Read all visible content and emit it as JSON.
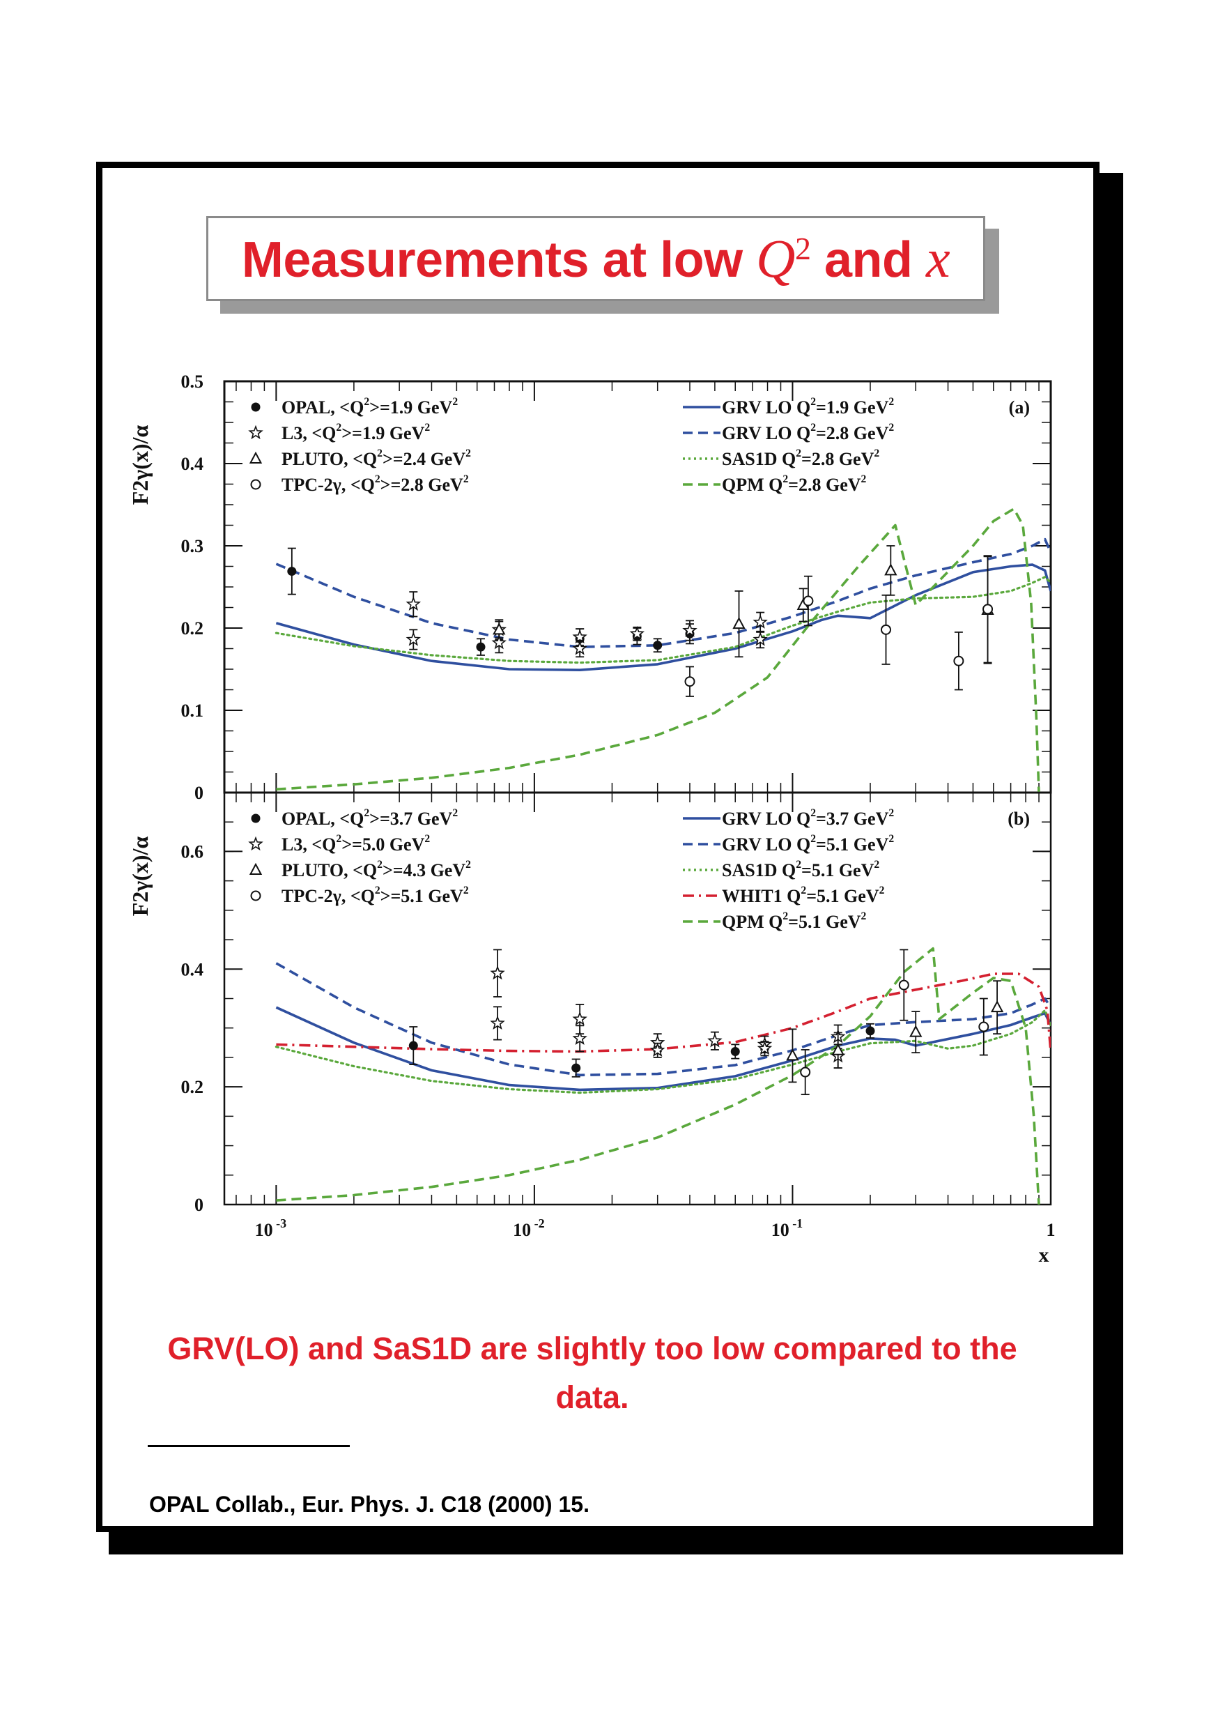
{
  "title": {
    "prefix": "Measurements at low ",
    "q": "Q",
    "exp": "2",
    "middle": " and ",
    "x": "x"
  },
  "conclusion": "GRV(LO) and SaS1D are slightly too low compared to the data.",
  "reference": "OPAL Collab., Eur. Phys. J. C18 (2000) 15.",
  "colors": {
    "red": "#e0202a",
    "blue": "#2f4f9f",
    "green": "#5aa83c",
    "whit": "#d42030"
  },
  "x_axis": {
    "label": "x",
    "scale": "log",
    "range": [
      0.00063,
      1.0
    ],
    "ticks": [
      0.001,
      0.01,
      0.1,
      1
    ],
    "tick_labels": [
      "10",
      "10",
      "10",
      "1"
    ],
    "tick_exponents": [
      "-3",
      "-2",
      "-1",
      ""
    ]
  },
  "chart_data": [
    {
      "type": "line",
      "panel_label": "(a)",
      "ylabel": "F2γ(x)/α",
      "ylim": [
        0,
        0.5
      ],
      "y_ticks": [
        0,
        0.1,
        0.2,
        0.3,
        0.4,
        0.5
      ],
      "y_tick_labels": [
        "0",
        "0.1",
        "0.2",
        "0.3",
        "0.4",
        "0.5"
      ],
      "legend_left": [
        {
          "text": "OPAL, <Q",
          "sup": "2",
          "rest": ">=1.9 GeV",
          "sup2": "2",
          "marker": "dot"
        },
        {
          "text": "L3, <Q",
          "sup": "2",
          "rest": ">=1.9 GeV",
          "sup2": "2",
          "marker": "star"
        },
        {
          "text": "PLUTO, <Q",
          "sup": "2",
          "rest": ">=2.4 GeV",
          "sup2": "2",
          "marker": "triangle"
        },
        {
          "text": "TPC-2γ, <Q",
          "sup": "2",
          "rest": ">=2.8 GeV",
          "sup2": "2",
          "marker": "circle"
        }
      ],
      "legend_right": [
        {
          "text": "GRV LO Q",
          "sup": "2",
          "rest": "=1.9 GeV",
          "sup2": "2",
          "style": "solid",
          "color": "#2f4f9f"
        },
        {
          "text": "GRV LO Q",
          "sup": "2",
          "rest": "=2.8 GeV",
          "sup2": "2",
          "style": "dash",
          "color": "#2f4f9f"
        },
        {
          "text": "SAS1D Q",
          "sup": "2",
          "rest": "=2.8 GeV",
          "sup2": "2",
          "style": "dot",
          "color": "#5aa83c"
        },
        {
          "text": "QPM Q",
          "sup": "2",
          "rest": "=2.8 GeV",
          "sup2": "2",
          "style": "dash",
          "color": "#5aa83c"
        }
      ],
      "curves": [
        {
          "name": "GRV LO Q2=1.9 GeV2",
          "style": "solid",
          "color": "#2f4f9f",
          "x": [
            0.001,
            0.002,
            0.004,
            0.008,
            0.015,
            0.03,
            0.06,
            0.1,
            0.13,
            0.15,
            0.2,
            0.3,
            0.5,
            0.7,
            0.85,
            0.95,
            1.0
          ],
          "y": [
            0.206,
            0.18,
            0.16,
            0.15,
            0.149,
            0.156,
            0.175,
            0.196,
            0.21,
            0.215,
            0.212,
            0.24,
            0.268,
            0.275,
            0.277,
            0.27,
            0.245
          ]
        },
        {
          "name": "GRV LO Q2=2.8 GeV2",
          "style": "dash",
          "color": "#2f4f9f",
          "x": [
            0.001,
            0.002,
            0.004,
            0.008,
            0.015,
            0.03,
            0.06,
            0.1,
            0.15,
            0.2,
            0.3,
            0.5,
            0.7,
            0.85,
            0.95,
            1.0
          ],
          "y": [
            0.278,
            0.238,
            0.206,
            0.186,
            0.177,
            0.179,
            0.194,
            0.214,
            0.233,
            0.248,
            0.264,
            0.28,
            0.29,
            0.3,
            0.308,
            0.292
          ]
        },
        {
          "name": "SAS1D Q2=2.8 GeV2",
          "style": "dot",
          "color": "#5aa83c",
          "x": [
            0.001,
            0.002,
            0.004,
            0.008,
            0.015,
            0.03,
            0.06,
            0.1,
            0.15,
            0.2,
            0.3,
            0.5,
            0.7,
            0.85,
            0.95,
            1.0
          ],
          "y": [
            0.194,
            0.178,
            0.167,
            0.16,
            0.158,
            0.161,
            0.177,
            0.203,
            0.22,
            0.231,
            0.236,
            0.238,
            0.245,
            0.255,
            0.262,
            0.255
          ]
        },
        {
          "name": "QPM Q2=2.8 GeV2",
          "style": "dash",
          "color": "#5aa83c",
          "x": [
            0.001,
            0.002,
            0.004,
            0.008,
            0.015,
            0.03,
            0.05,
            0.08,
            0.12,
            0.18,
            0.25,
            0.3,
            0.5,
            0.6,
            0.72,
            0.78,
            0.84,
            0.88,
            0.9
          ],
          "y": [
            0.004,
            0.01,
            0.018,
            0.03,
            0.046,
            0.07,
            0.097,
            0.14,
            0.21,
            0.275,
            0.325,
            0.228,
            0.3,
            0.33,
            0.345,
            0.325,
            0.23,
            0.09,
            0.0
          ]
        }
      ],
      "points": [
        {
          "marker": "dot",
          "x": [
            0.00115,
            0.0062,
            0.015,
            0.025,
            0.03,
            0.04
          ],
          "y": [
            0.269,
            0.177,
            0.187,
            0.19,
            0.179,
            0.193
          ],
          "err": [
            0.028,
            0.01,
            0.012,
            0.01,
            0.008,
            0.012
          ]
        },
        {
          "marker": "star",
          "x": [
            0.0034,
            0.0034,
            0.0073,
            0.0073,
            0.015,
            0.015,
            0.025,
            0.04,
            0.075,
            0.075
          ],
          "y": [
            0.229,
            0.186,
            0.198,
            0.182,
            0.189,
            0.175,
            0.193,
            0.197,
            0.207,
            0.186
          ],
          "err": [
            0.015,
            0.012,
            0.012,
            0.012,
            0.01,
            0.01,
            0.008,
            0.012,
            0.012,
            0.01
          ]
        },
        {
          "marker": "triangle",
          "x": [
            0.0073,
            0.062,
            0.11,
            0.24,
            0.57
          ],
          "y": [
            0.198,
            0.205,
            0.228,
            0.27,
            0.222
          ],
          "err": [
            0.01,
            0.04,
            0.02,
            0.03,
            0.065
          ]
        },
        {
          "marker": "circle",
          "x": [
            0.04,
            0.115,
            0.23,
            0.44,
            0.57
          ],
          "y": [
            0.135,
            0.233,
            0.198,
            0.16,
            0.223
          ],
          "err": [
            0.018,
            0.03,
            0.042,
            0.035,
            0.065
          ]
        }
      ]
    },
    {
      "type": "line",
      "panel_label": "(b)",
      "ylabel": "F2γ(x)/α",
      "ylim": [
        0,
        0.7
      ],
      "y_ticks": [
        0,
        0.2,
        0.4,
        0.6
      ],
      "y_tick_labels": [
        "0",
        "0.2",
        "0.4",
        "0.6"
      ],
      "legend_left": [
        {
          "text": "OPAL, <Q",
          "sup": "2",
          "rest": ">=3.7 GeV",
          "sup2": "2",
          "marker": "dot"
        },
        {
          "text": "L3, <Q",
          "sup": "2",
          "rest": ">=5.0 GeV",
          "sup2": "2",
          "marker": "star"
        },
        {
          "text": "PLUTO, <Q",
          "sup": "2",
          "rest": ">=4.3 GeV",
          "sup2": "2",
          "marker": "triangle"
        },
        {
          "text": "TPC-2γ, <Q",
          "sup": "2",
          "rest": ">=5.1 GeV",
          "sup2": "2",
          "marker": "circle"
        }
      ],
      "legend_right": [
        {
          "text": "GRV LO Q",
          "sup": "2",
          "rest": "=3.7 GeV",
          "sup2": "2",
          "style": "solid",
          "color": "#2f4f9f"
        },
        {
          "text": "GRV LO Q",
          "sup": "2",
          "rest": "=5.1 GeV",
          "sup2": "2",
          "style": "dash",
          "color": "#2f4f9f"
        },
        {
          "text": "SAS1D Q",
          "sup": "2",
          "rest": "=5.1 GeV",
          "sup2": "2",
          "style": "dot",
          "color": "#5aa83c"
        },
        {
          "text": "WHIT1 Q",
          "sup": "2",
          "rest": "=5.1 GeV",
          "sup2": "2",
          "style": "dashdot",
          "color": "#d42030"
        },
        {
          "text": "QPM Q",
          "sup": "2",
          "rest": "=5.1 GeV",
          "sup2": "2",
          "style": "dash",
          "color": "#5aa83c"
        }
      ],
      "curves": [
        {
          "name": "GRV LO Q2=3.7 GeV2",
          "style": "solid",
          "color": "#2f4f9f",
          "x": [
            0.001,
            0.002,
            0.004,
            0.008,
            0.015,
            0.03,
            0.06,
            0.1,
            0.15,
            0.2,
            0.25,
            0.3,
            0.5,
            0.7,
            0.85,
            0.95,
            1.0
          ],
          "y": [
            0.335,
            0.275,
            0.228,
            0.203,
            0.195,
            0.198,
            0.218,
            0.245,
            0.27,
            0.282,
            0.28,
            0.27,
            0.29,
            0.305,
            0.318,
            0.325,
            0.305
          ]
        },
        {
          "name": "GRV LO Q2=5.1 GeV2",
          "style": "dash",
          "color": "#2f4f9f",
          "x": [
            0.001,
            0.002,
            0.004,
            0.008,
            0.015,
            0.03,
            0.06,
            0.1,
            0.15,
            0.2,
            0.3,
            0.5,
            0.7,
            0.85,
            0.95,
            1.0
          ],
          "y": [
            0.41,
            0.335,
            0.275,
            0.238,
            0.22,
            0.222,
            0.237,
            0.262,
            0.288,
            0.305,
            0.31,
            0.315,
            0.325,
            0.34,
            0.35,
            0.335
          ]
        },
        {
          "name": "SAS1D Q2=5.1 GeV2",
          "style": "dot",
          "color": "#5aa83c",
          "x": [
            0.001,
            0.002,
            0.004,
            0.008,
            0.015,
            0.03,
            0.06,
            0.1,
            0.15,
            0.2,
            0.3,
            0.4,
            0.5,
            0.7,
            0.85,
            0.95,
            1.0
          ],
          "y": [
            0.268,
            0.235,
            0.21,
            0.196,
            0.19,
            0.196,
            0.213,
            0.238,
            0.26,
            0.274,
            0.278,
            0.265,
            0.27,
            0.29,
            0.31,
            0.33,
            0.305
          ]
        },
        {
          "name": "WHIT1 Q2=5.1 GeV2",
          "style": "dashdot",
          "color": "#d42030",
          "x": [
            0.001,
            0.002,
            0.004,
            0.008,
            0.015,
            0.03,
            0.06,
            0.1,
            0.15,
            0.2,
            0.3,
            0.45,
            0.6,
            0.75,
            0.9,
            0.97,
            1.0
          ],
          "y": [
            0.272,
            0.268,
            0.264,
            0.261,
            0.26,
            0.264,
            0.276,
            0.3,
            0.328,
            0.35,
            0.365,
            0.38,
            0.392,
            0.392,
            0.37,
            0.33,
            0.26
          ]
        },
        {
          "name": "QPM Q2=5.1 GeV2",
          "style": "dash",
          "color": "#5aa83c",
          "x": [
            0.001,
            0.002,
            0.004,
            0.008,
            0.015,
            0.03,
            0.06,
            0.1,
            0.15,
            0.2,
            0.27,
            0.35,
            0.37,
            0.5,
            0.6,
            0.7,
            0.8,
            0.86,
            0.9
          ],
          "y": [
            0.007,
            0.016,
            0.03,
            0.05,
            0.076,
            0.114,
            0.17,
            0.22,
            0.27,
            0.32,
            0.395,
            0.435,
            0.315,
            0.36,
            0.385,
            0.38,
            0.3,
            0.15,
            0.0
          ]
        }
      ],
      "points": [
        {
          "marker": "dot",
          "x": [
            0.0034,
            0.0145,
            0.06,
            0.2
          ],
          "y": [
            0.27,
            0.232,
            0.26,
            0.295
          ],
          "err": [
            0.032,
            0.015,
            0.012,
            0.012
          ]
        },
        {
          "marker": "star",
          "x": [
            0.0072,
            0.0072,
            0.015,
            0.015,
            0.03,
            0.03,
            0.05,
            0.078,
            0.078,
            0.15,
            0.15
          ],
          "y": [
            0.393,
            0.308,
            0.315,
            0.282,
            0.275,
            0.262,
            0.278,
            0.272,
            0.265,
            0.285,
            0.252
          ],
          "err": [
            0.04,
            0.028,
            0.025,
            0.022,
            0.015,
            0.012,
            0.015,
            0.014,
            0.012,
            0.02,
            0.02
          ]
        },
        {
          "marker": "triangle",
          "x": [
            0.1,
            0.15,
            0.3,
            0.62
          ],
          "y": [
            0.253,
            0.262,
            0.293,
            0.335
          ],
          "err": [
            0.045,
            0.03,
            0.035,
            0.045
          ]
        },
        {
          "marker": "circle",
          "x": [
            0.112,
            0.27,
            0.55
          ],
          "y": [
            0.225,
            0.373,
            0.302
          ],
          "err": [
            0.038,
            0.06,
            0.048
          ]
        }
      ]
    }
  ]
}
